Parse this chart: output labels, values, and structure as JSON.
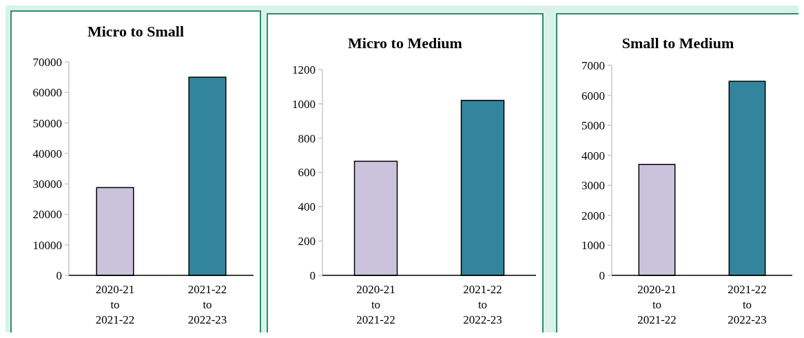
{
  "chart_data": [
    {
      "type": "bar",
      "title": "Micro to Small",
      "categories": [
        "2020-21 to 2021-22",
        "2021-22 to 2022-23"
      ],
      "values": [
        28800,
        65000
      ],
      "colors": [
        "#cbc3db",
        "#32859c"
      ],
      "ylim": [
        0,
        70000
      ],
      "yticks": [
        0,
        10000,
        20000,
        30000,
        40000,
        50000,
        60000,
        70000
      ]
    },
    {
      "type": "bar",
      "title": "Micro to Medium",
      "categories": [
        "2020-21 to 2021-22",
        "2021-22 to 2022-23"
      ],
      "values": [
        665,
        1020
      ],
      "colors": [
        "#cbc3db",
        "#32859c"
      ],
      "ylim": [
        0,
        1200
      ],
      "yticks": [
        0,
        200,
        400,
        600,
        800,
        1000,
        1200
      ]
    },
    {
      "type": "bar",
      "title": "Small to Medium",
      "categories": [
        "2020-21 to 2021-22",
        "2021-22 to 2022-23"
      ],
      "values": [
        3700,
        6470
      ],
      "colors": [
        "#cbc3db",
        "#32859c"
      ],
      "ylim": [
        0,
        7000
      ],
      "yticks": [
        0,
        1000,
        2000,
        3000,
        4000,
        5000,
        6000,
        7000
      ]
    }
  ]
}
